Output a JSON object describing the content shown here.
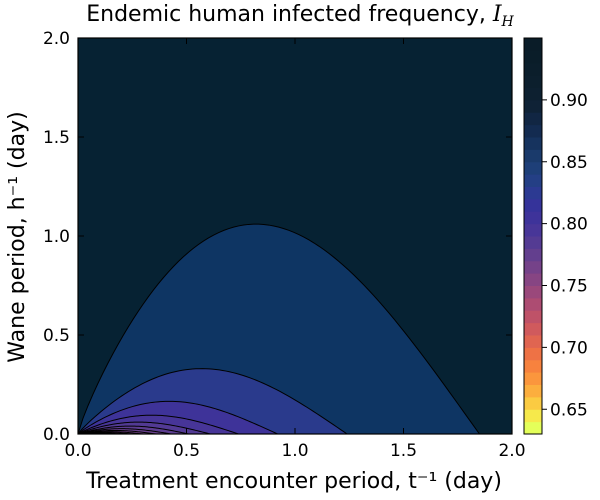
{
  "chart_data": {
    "type": "contour",
    "title_text": "Endemic human infected frequency, ",
    "title_symbol": "I",
    "title_subscript": "H",
    "xlabel": "Treatment encounter period, t⁻¹ (day)",
    "ylabel": "Wane period, h⁻¹ (day)",
    "xlim": [
      0.0,
      2.0
    ],
    "ylim": [
      0.0,
      2.0
    ],
    "x_ticks": [
      "0.0",
      "0.5",
      "1.0",
      "1.5",
      "2.0"
    ],
    "y_ticks": [
      "0.0",
      "0.5",
      "1.0",
      "1.5",
      "2.0"
    ],
    "grid": false,
    "colorbar": {
      "levels": [
        0.63,
        0.64,
        0.65,
        0.66,
        0.67,
        0.68,
        0.69,
        0.7,
        0.71,
        0.72,
        0.73,
        0.74,
        0.75,
        0.76,
        0.77,
        0.78,
        0.79,
        0.8,
        0.81,
        0.82,
        0.83,
        0.84,
        0.85,
        0.86,
        0.87,
        0.88,
        0.89,
        0.9,
        0.91,
        0.92,
        0.93,
        0.94,
        0.95
      ],
      "tick_values": [
        0.65,
        0.7,
        0.75,
        0.8,
        0.85,
        0.9
      ],
      "tick_labels": [
        "0.65",
        "0.70",
        "0.75",
        "0.80",
        "0.85",
        "0.90"
      ],
      "colors": [
        "#e4ff5a",
        "#f6e94b",
        "#fbcb42",
        "#fcae3e",
        "#fb963d",
        "#f7823e",
        "#ee7245",
        "#e06551",
        "#d05a5d",
        "#bf5268",
        "#ad4c72",
        "#9a487b",
        "#874583",
        "#754289",
        "#633f8e",
        "#543b93",
        "#483698",
        "#3e339a",
        "#35339a",
        "#2c3a92",
        "#243f85",
        "#1e3f78",
        "#1a3a6b",
        "#16335e",
        "#132b50",
        "#112643",
        "#0f2236",
        "#0d2030",
        "#0c1f2d",
        "#0b1e2b",
        "#0a1d29",
        "#0a1c28"
      ]
    },
    "contours": [
      {
        "level": 0.93,
        "x_end": 1.85,
        "y_peak": 1.06,
        "x_peak": 0.82
      },
      {
        "level": 0.92,
        "x_end": 1.24,
        "y_peak": 0.33,
        "x_peak": 0.57
      },
      {
        "level": 0.91,
        "x_end": 0.92,
        "y_peak": 0.165,
        "x_peak": 0.42
      },
      {
        "level": 0.9,
        "x_end": 0.74,
        "y_peak": 0.095,
        "x_peak": 0.34
      },
      {
        "level": 0.89,
        "x_end": 0.61,
        "y_peak": 0.06,
        "x_peak": 0.28
      },
      {
        "level": 0.88,
        "x_end": 0.51,
        "y_peak": 0.04,
        "x_peak": 0.24
      },
      {
        "level": 0.87,
        "x_end": 0.43,
        "y_peak": 0.027,
        "x_peak": 0.2
      },
      {
        "level": 0.86,
        "x_end": 0.36,
        "y_peak": 0.018,
        "x_peak": 0.17
      },
      {
        "level": 0.85,
        "x_end": 0.3,
        "y_peak": 0.012,
        "x_peak": 0.14
      },
      {
        "level": 0.84,
        "x_end": 0.25,
        "y_peak": 0.008,
        "x_peak": 0.12
      },
      {
        "level": 0.83,
        "x_end": 0.2,
        "y_peak": 0.005,
        "x_peak": 0.1
      },
      {
        "level": 0.82,
        "x_end": 0.16,
        "y_peak": 0.003,
        "x_peak": 0.08
      }
    ],
    "region_colors": [
      "#062233",
      "#0e3563",
      "#2a3a8c",
      "#3e3399",
      "#473598",
      "#523a94",
      "#5c3d90",
      "#68408c",
      "#734288",
      "#7f4485",
      "#8b4680",
      "#98487b",
      "#a54a76"
    ]
  }
}
